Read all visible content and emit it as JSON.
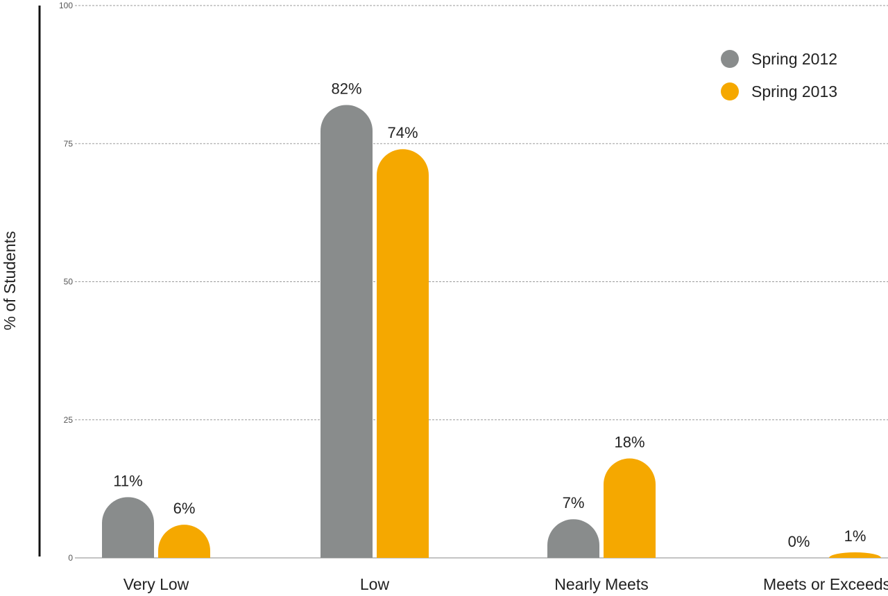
{
  "chart_data": {
    "type": "bar",
    "title": "",
    "xlabel": "",
    "ylabel": "% of Students",
    "ylim": [
      0,
      100
    ],
    "yticks": [
      0,
      25,
      50,
      75,
      100
    ],
    "grid": true,
    "legend_position": "top-right",
    "categories": [
      "Very Low",
      "Low",
      "Nearly Meets",
      "Meets or Exceeds"
    ],
    "series": [
      {
        "name": "Spring 2012",
        "color": "#898c8c",
        "values": [
          11,
          82,
          7,
          0
        ],
        "labels": [
          "11%",
          "82%",
          "7%",
          "0%"
        ]
      },
      {
        "name": "Spring 2013",
        "color": "#f5a800",
        "values": [
          6,
          74,
          18,
          1
        ],
        "labels": [
          "6%",
          "74%",
          "18%",
          "1%"
        ]
      }
    ]
  }
}
